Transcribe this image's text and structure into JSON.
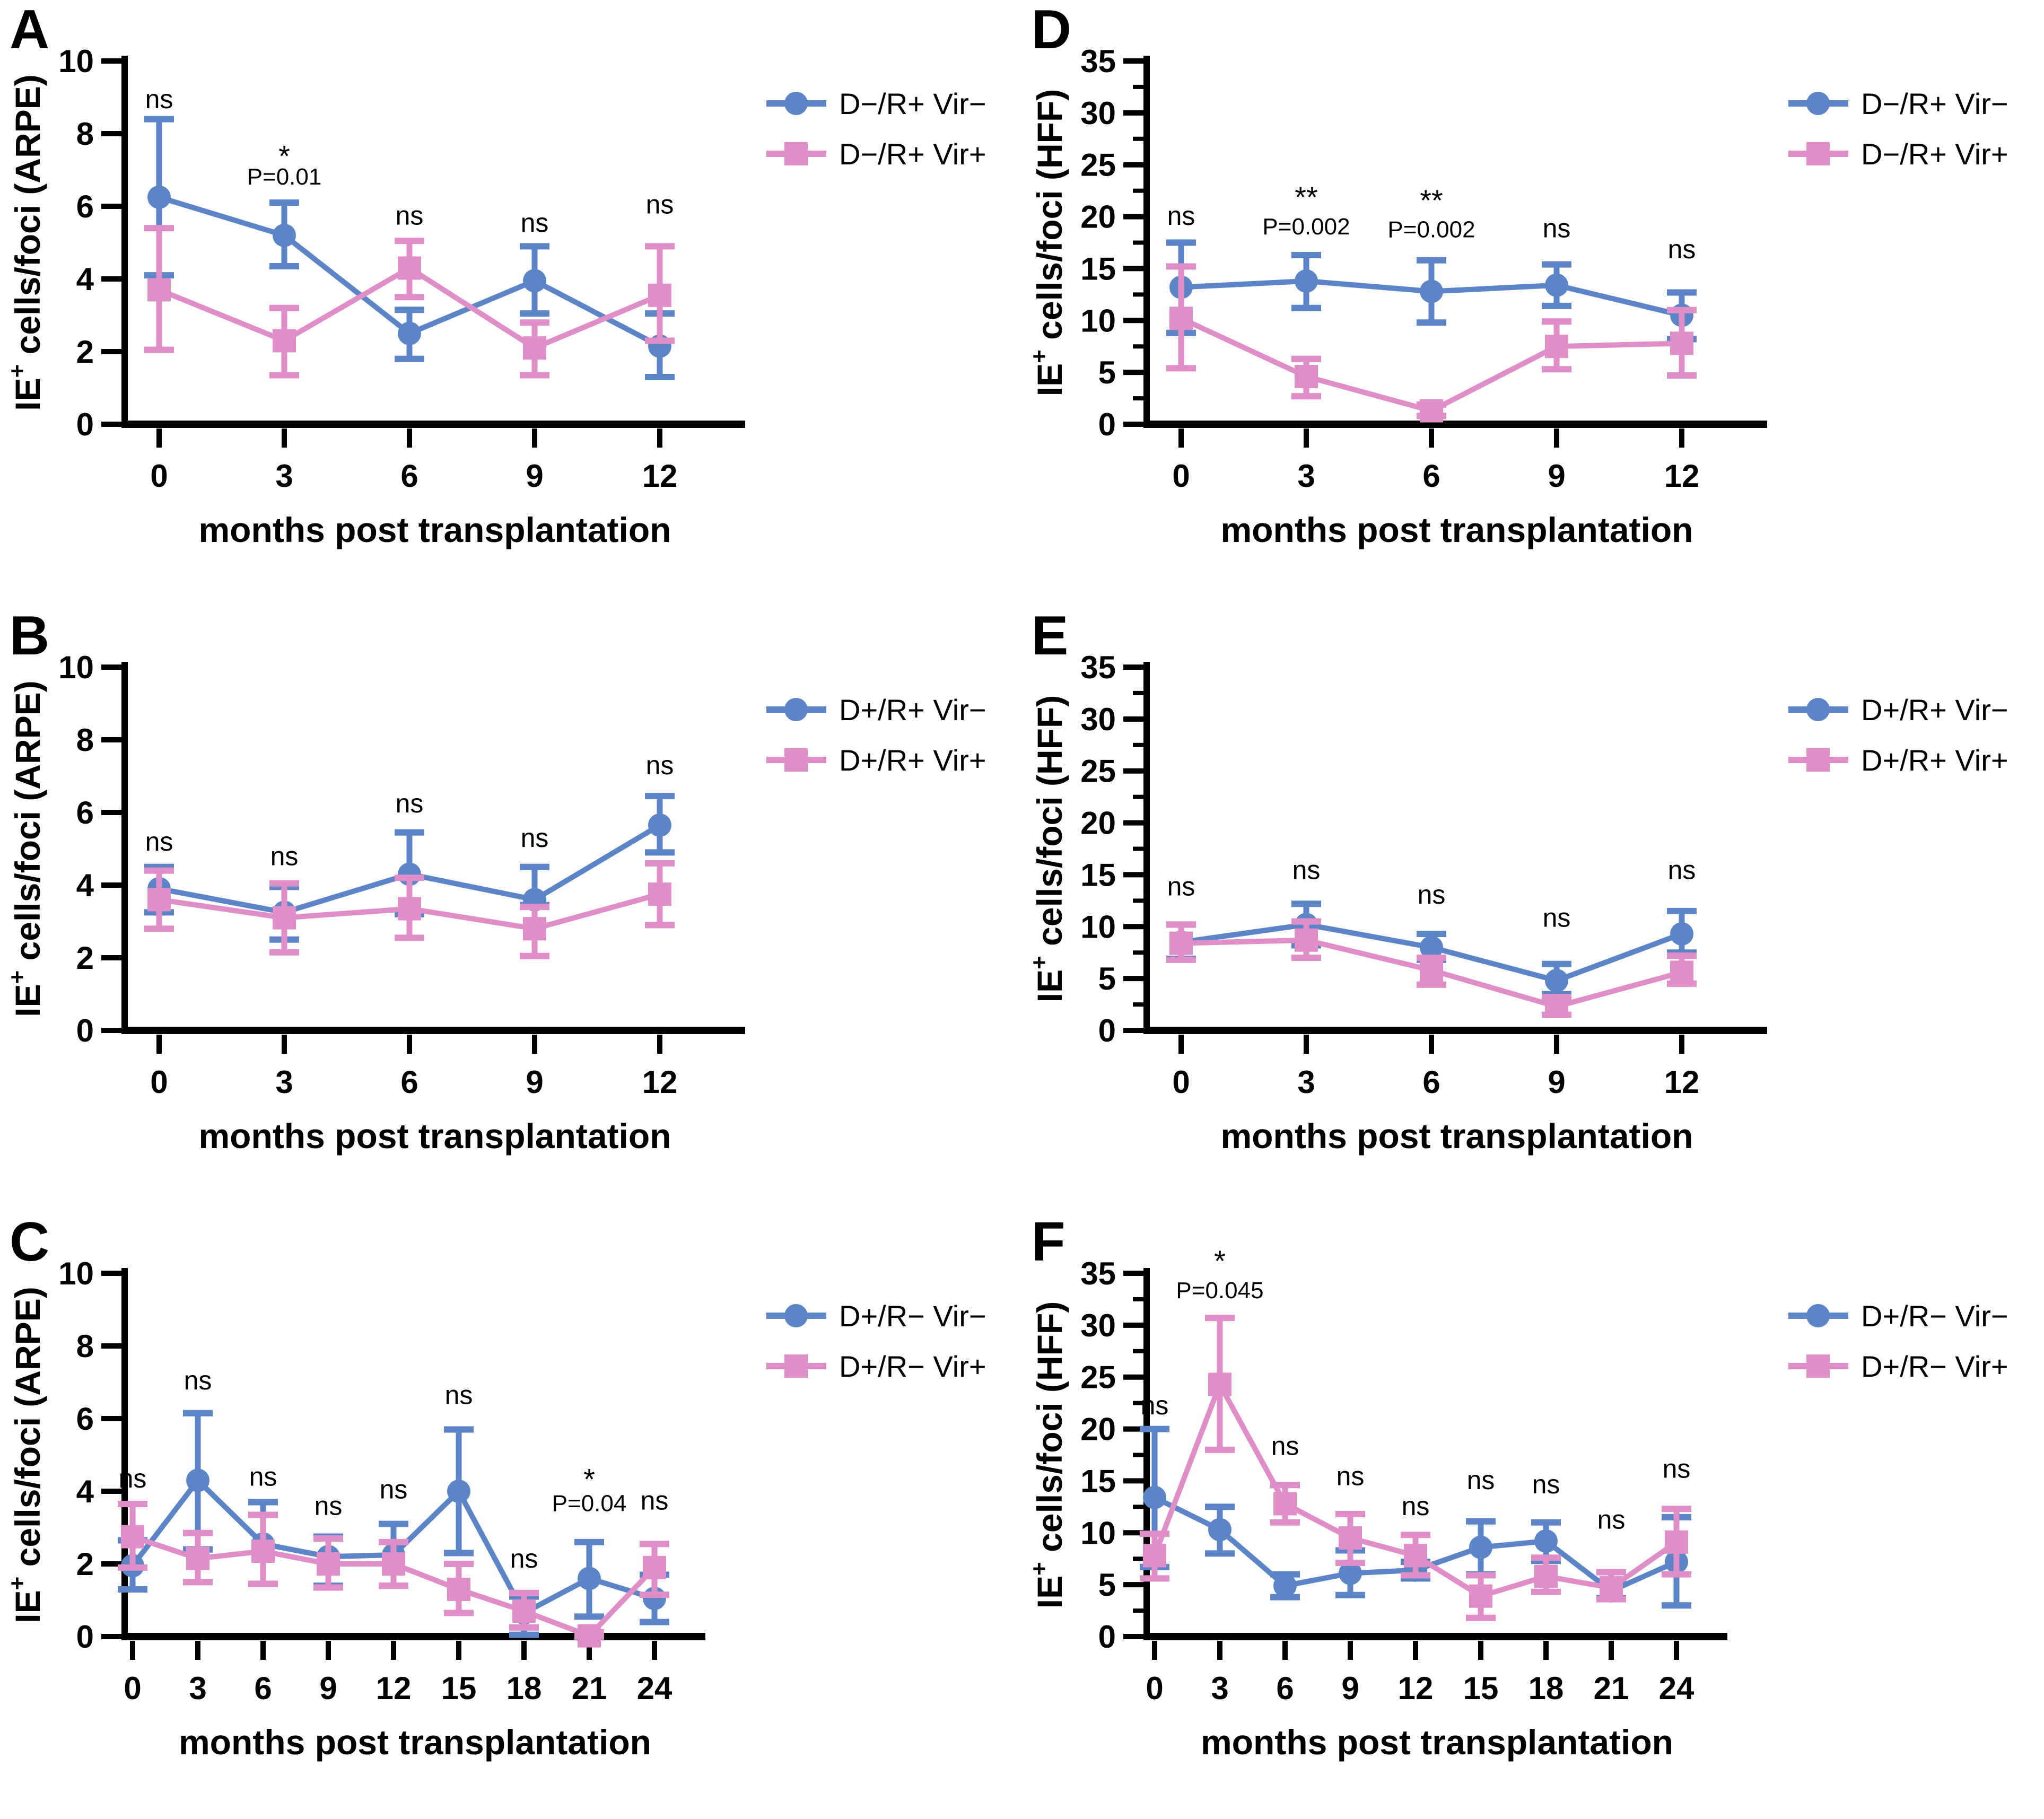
{
  "figure": {
    "background": "#ffffff",
    "xlabel": "months post transplantation",
    "colors": {
      "series1": "#5b85c6",
      "series2": "#e08ec8",
      "axis": "#000000",
      "text": "#000000"
    }
  },
  "chart_data": [
    {
      "panel": "A",
      "type": "line",
      "ylabel": {
        "pre": "IE",
        "sup": "+",
        "post": " cells/foci (ARPE)"
      },
      "xlabel": "months post transplantation",
      "ylim": [
        0,
        10
      ],
      "ytick_step": 2,
      "yminor_step": 0,
      "categories": [
        0,
        3,
        6,
        9,
        12
      ],
      "series": [
        {
          "name": "D−/R+ Vir−",
          "marker": "circle",
          "color_key": "series1",
          "values": [
            6.25,
            5.2,
            2.5,
            3.95,
            2.15
          ],
          "err_lo": [
            4.1,
            4.35,
            1.8,
            3.05,
            1.3
          ],
          "err_hi": [
            8.4,
            6.1,
            3.15,
            4.9,
            3.05
          ]
        },
        {
          "name": "D−/R+ Vir+",
          "marker": "square",
          "color_key": "series2",
          "values": [
            3.7,
            2.3,
            4.3,
            2.1,
            3.55
          ],
          "err_lo": [
            2.05,
            1.35,
            3.5,
            1.35,
            2.3
          ],
          "err_hi": [
            5.4,
            3.2,
            5.05,
            2.8,
            4.9
          ]
        }
      ],
      "annotations": [
        {
          "x": 0,
          "lines": [
            {
              "text": "ns",
              "y": 8.7
            }
          ]
        },
        {
          "x": 3,
          "lines": [
            {
              "text": "*",
              "y": 7.1
            },
            {
              "text": "P=0.01",
              "y": 6.6
            }
          ]
        },
        {
          "x": 6,
          "lines": [
            {
              "text": "ns",
              "y": 5.5
            }
          ]
        },
        {
          "x": 9,
          "lines": [
            {
              "text": "ns",
              "y": 5.3
            }
          ]
        },
        {
          "x": 12,
          "lines": [
            {
              "text": "ns",
              "y": 5.8
            }
          ]
        }
      ]
    },
    {
      "panel": "B",
      "type": "line",
      "ylabel": {
        "pre": "IE",
        "sup": "+",
        "post": " cells/foci (ARPE)"
      },
      "xlabel": "months post transplantation",
      "ylim": [
        0,
        10
      ],
      "ytick_step": 2,
      "yminor_step": 0,
      "categories": [
        0,
        3,
        6,
        9,
        12
      ],
      "series": [
        {
          "name": "D+/R+ Vir−",
          "marker": "circle",
          "color_key": "series1",
          "values": [
            3.9,
            3.25,
            4.3,
            3.6,
            5.65
          ],
          "err_lo": [
            3.25,
            2.5,
            3.2,
            3.45,
            4.9
          ],
          "err_hi": [
            4.5,
            3.95,
            5.45,
            4.5,
            6.45
          ]
        },
        {
          "name": "D+/R+ Vir+",
          "marker": "square",
          "color_key": "series2",
          "values": [
            3.6,
            3.1,
            3.35,
            2.8,
            3.75
          ],
          "err_lo": [
            2.8,
            2.15,
            2.55,
            2.05,
            2.9
          ],
          "err_hi": [
            4.4,
            4.05,
            4.2,
            3.4,
            4.6
          ]
        }
      ],
      "annotations": [
        {
          "x": 0,
          "lines": [
            {
              "text": "ns",
              "y": 4.95
            }
          ]
        },
        {
          "x": 3,
          "lines": [
            {
              "text": "ns",
              "y": 4.55
            }
          ]
        },
        {
          "x": 6,
          "lines": [
            {
              "text": "ns",
              "y": 6.0
            }
          ]
        },
        {
          "x": 9,
          "lines": [
            {
              "text": "ns",
              "y": 5.05
            }
          ]
        },
        {
          "x": 12,
          "lines": [
            {
              "text": "ns",
              "y": 7.05
            }
          ]
        }
      ]
    },
    {
      "panel": "C",
      "type": "line",
      "ylabel": {
        "pre": "IE",
        "sup": "+",
        "post": " cells/foci (ARPE)"
      },
      "xlabel": "months post transplantation",
      "ylim": [
        0,
        10
      ],
      "ytick_step": 2,
      "yminor_step": 0,
      "categories": [
        0,
        3,
        6,
        9,
        12,
        15,
        18,
        21,
        24
      ],
      "series": [
        {
          "name": "D+/R− Vir−",
          "marker": "circle",
          "color_key": "series1",
          "values": [
            1.95,
            4.3,
            2.55,
            2.2,
            2.25,
            4.0,
            0.65,
            1.6,
            1.05
          ],
          "err_lo": [
            1.3,
            2.4,
            1.45,
            1.4,
            1.4,
            2.3,
            0.05,
            0.55,
            0.4
          ],
          "err_hi": [
            2.65,
            6.15,
            3.7,
            2.75,
            3.1,
            5.7,
            1.1,
            2.6,
            1.7
          ]
        },
        {
          "name": "D+/R− Vir+",
          "marker": "square",
          "color_key": "series2",
          "values": [
            2.75,
            2.15,
            2.35,
            2.0,
            2.0,
            1.3,
            0.7,
            0.02,
            1.9
          ],
          "err_lo": [
            1.9,
            1.5,
            1.45,
            1.35,
            1.4,
            0.65,
            0.25,
            0.0,
            1.15
          ],
          "err_hi": [
            3.65,
            2.85,
            3.35,
            2.7,
            2.6,
            2.0,
            1.2,
            0.12,
            2.55
          ]
        }
      ],
      "annotations": [
        {
          "x": 0,
          "lines": [
            {
              "text": "ns",
              "y": 4.1
            }
          ]
        },
        {
          "x": 3,
          "lines": [
            {
              "text": "ns",
              "y": 6.8
            }
          ]
        },
        {
          "x": 6,
          "lines": [
            {
              "text": "ns",
              "y": 4.15
            }
          ]
        },
        {
          "x": 9,
          "lines": [
            {
              "text": "ns",
              "y": 3.35
            }
          ]
        },
        {
          "x": 12,
          "lines": [
            {
              "text": "ns",
              "y": 3.8
            }
          ]
        },
        {
          "x": 15,
          "lines": [
            {
              "text": "ns",
              "y": 6.4
            }
          ]
        },
        {
          "x": 18,
          "lines": [
            {
              "text": "ns",
              "y": 1.9
            }
          ]
        },
        {
          "x": 21,
          "lines": [
            {
              "text": "*",
              "y": 4.05
            },
            {
              "text": "P=0.04",
              "y": 3.45
            }
          ]
        },
        {
          "x": 24,
          "lines": [
            {
              "text": "ns",
              "y": 3.5
            }
          ]
        }
      ]
    },
    {
      "panel": "D",
      "type": "line",
      "ylabel": {
        "pre": "IE",
        "sup": "+",
        "post": " cells/foci (HFF)"
      },
      "xlabel": "months post transplantation",
      "ylim": [
        0,
        35
      ],
      "ytick_step": 5,
      "yminor_step": 2.5,
      "categories": [
        0,
        3,
        6,
        9,
        12
      ],
      "series": [
        {
          "name": "D−/R+ Vir−",
          "marker": "circle",
          "color_key": "series1",
          "values": [
            13.2,
            13.8,
            12.8,
            13.4,
            10.5
          ],
          "err_lo": [
            8.8,
            11.2,
            9.8,
            11.4,
            8.2
          ],
          "err_hi": [
            17.5,
            16.3,
            15.8,
            15.4,
            12.7
          ]
        },
        {
          "name": "D−/R+ Vir+",
          "marker": "square",
          "color_key": "series2",
          "values": [
            10.2,
            4.6,
            1.3,
            7.5,
            7.8
          ],
          "err_lo": [
            5.4,
            2.7,
            0.8,
            5.3,
            4.7
          ],
          "err_hi": [
            15.2,
            6.3,
            1.9,
            9.9,
            11.0
          ]
        }
      ],
      "annotations": [
        {
          "x": 0,
          "lines": [
            {
              "text": "ns",
              "y": 19.2
            }
          ]
        },
        {
          "x": 3,
          "lines": [
            {
              "text": "**",
              "y": 20.9
            },
            {
              "text": "P=0.002",
              "y": 18.3
            }
          ]
        },
        {
          "x": 6,
          "lines": [
            {
              "text": "**",
              "y": 20.6
            },
            {
              "text": "P=0.002",
              "y": 18.0
            }
          ]
        },
        {
          "x": 9,
          "lines": [
            {
              "text": "ns",
              "y": 18.0
            }
          ]
        },
        {
          "x": 12,
          "lines": [
            {
              "text": "ns",
              "y": 16.0
            }
          ]
        }
      ]
    },
    {
      "panel": "E",
      "type": "line",
      "ylabel": {
        "pre": "IE",
        "sup": "+",
        "post": " cells/foci (HFF)"
      },
      "xlabel": "months post transplantation",
      "ylim": [
        0,
        35
      ],
      "ytick_step": 5,
      "yminor_step": 2.5,
      "categories": [
        0,
        3,
        6,
        9,
        12
      ],
      "series": [
        {
          "name": "D+/R+ Vir−",
          "marker": "circle",
          "color_key": "series1",
          "values": [
            8.5,
            10.2,
            8.0,
            4.8,
            9.3
          ],
          "err_lo": [
            6.9,
            8.2,
            6.8,
            3.5,
            7.5
          ],
          "err_hi": [
            10.2,
            12.2,
            9.3,
            6.4,
            11.5
          ]
        },
        {
          "name": "D+/R+ Vir+",
          "marker": "square",
          "color_key": "series2",
          "values": [
            8.4,
            8.7,
            5.8,
            2.3,
            5.6
          ],
          "err_lo": [
            6.8,
            7.0,
            4.4,
            1.5,
            4.5
          ],
          "err_hi": [
            10.2,
            10.5,
            7.0,
            3.2,
            7.2
          ]
        }
      ],
      "annotations": [
        {
          "x": 0,
          "lines": [
            {
              "text": "ns",
              "y": 13.0
            }
          ]
        },
        {
          "x": 3,
          "lines": [
            {
              "text": "ns",
              "y": 14.6
            }
          ]
        },
        {
          "x": 6,
          "lines": [
            {
              "text": "ns",
              "y": 12.2
            }
          ]
        },
        {
          "x": 9,
          "lines": [
            {
              "text": "ns",
              "y": 10.0
            }
          ]
        },
        {
          "x": 12,
          "lines": [
            {
              "text": "ns",
              "y": 14.6
            }
          ]
        }
      ]
    },
    {
      "panel": "F",
      "type": "line",
      "ylabel": {
        "pre": "IE",
        "sup": "+",
        "post": " cells/foci (HFF)"
      },
      "xlabel": "months post transplantation",
      "ylim": [
        0,
        35
      ],
      "ytick_step": 5,
      "yminor_step": 2.5,
      "categories": [
        0,
        3,
        6,
        9,
        12,
        15,
        18,
        21,
        24
      ],
      "series": [
        {
          "name": "D+/R− Vir−",
          "marker": "circle",
          "color_key": "series1",
          "values": [
            13.4,
            10.3,
            4.9,
            6.1,
            6.4,
            8.6,
            9.2,
            4.4,
            7.2
          ],
          "err_lo": [
            6.7,
            8.0,
            3.8,
            4.0,
            5.6,
            6.0,
            7.3,
            3.7,
            3.0
          ],
          "err_hi": [
            20.0,
            12.5,
            6.0,
            8.3,
            7.2,
            11.1,
            11.0,
            5.3,
            11.5
          ]
        },
        {
          "name": "D+/R− Vir+",
          "marker": "square",
          "color_key": "series2",
          "values": [
            7.8,
            24.3,
            12.8,
            9.5,
            7.8,
            3.9,
            5.8,
            4.7,
            9.1
          ],
          "err_lo": [
            5.6,
            18.0,
            11.0,
            7.1,
            5.9,
            1.8,
            4.3,
            3.6,
            6.0
          ],
          "err_hi": [
            9.9,
            30.7,
            14.6,
            11.8,
            9.8,
            5.9,
            7.6,
            6.2,
            12.3
          ]
        }
      ],
      "annotations": [
        {
          "x": 0,
          "lines": [
            {
              "text": "ns",
              "y": 21.4
            }
          ]
        },
        {
          "x": 3,
          "lines": [
            {
              "text": "*",
              "y": 35.2
            },
            {
              "text": "P=0.045",
              "y": 32.6
            }
          ]
        },
        {
          "x": 6,
          "lines": [
            {
              "text": "ns",
              "y": 17.5
            }
          ]
        },
        {
          "x": 9,
          "lines": [
            {
              "text": "ns",
              "y": 14.6
            }
          ]
        },
        {
          "x": 12,
          "lines": [
            {
              "text": "ns",
              "y": 11.7
            }
          ]
        },
        {
          "x": 15,
          "lines": [
            {
              "text": "ns",
              "y": 14.2
            }
          ]
        },
        {
          "x": 18,
          "lines": [
            {
              "text": "ns",
              "y": 13.8
            }
          ]
        },
        {
          "x": 21,
          "lines": [
            {
              "text": "ns",
              "y": 10.4
            }
          ]
        },
        {
          "x": 24,
          "lines": [
            {
              "text": "ns",
              "y": 15.3
            }
          ]
        }
      ]
    }
  ]
}
